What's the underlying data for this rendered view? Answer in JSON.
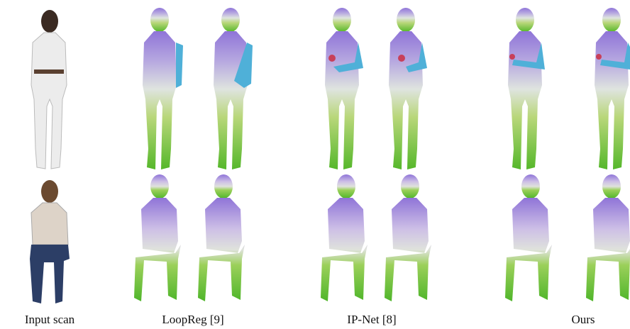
{
  "captions": [
    "Input scan",
    "LoopReg [9]",
    "IP-Net [8]",
    "Ours"
  ]
}
